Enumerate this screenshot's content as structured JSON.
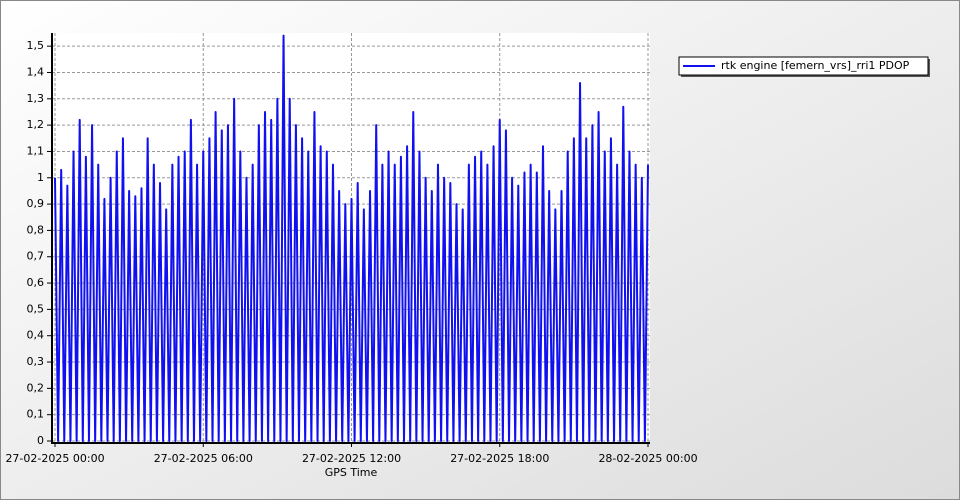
{
  "chart_data": {
    "type": "line",
    "x_label": "GPS Time",
    "x": [
      0,
      0.125,
      0.25,
      0.375,
      0.5,
      0.625,
      0.75,
      0.875,
      1,
      1.125,
      1.25,
      1.375,
      1.5,
      1.625,
      1.75,
      1.875,
      2,
      2.125,
      2.25,
      2.375,
      2.5,
      2.625,
      2.75,
      2.875,
      3,
      3.125,
      3.25,
      3.375,
      3.5,
      3.625,
      3.75,
      3.875,
      4,
      4.125,
      4.25,
      4.375,
      4.5,
      4.625,
      4.75,
      4.875,
      5,
      5.125,
      5.25,
      5.375,
      5.5,
      5.625,
      5.75,
      5.875,
      6,
      6.125,
      6.25,
      6.375,
      6.5,
      6.625,
      6.75,
      6.875,
      7,
      7.125,
      7.25,
      7.375,
      7.5,
      7.625,
      7.75,
      7.875,
      8,
      8.125,
      8.25,
      8.375,
      8.5,
      8.625,
      8.75,
      8.875,
      9,
      9.125,
      9.25,
      9.375,
      9.5,
      9.625,
      9.75,
      9.875,
      10,
      10.125,
      10.25,
      10.375,
      10.5,
      10.625,
      10.75,
      10.875,
      11,
      11.125,
      11.25,
      11.375,
      11.5,
      11.625,
      11.75,
      11.875,
      12,
      12.125,
      12.25,
      12.375,
      12.5,
      12.625,
      12.75,
      12.875,
      13,
      13.125,
      13.25,
      13.375,
      13.5,
      13.625,
      13.75,
      13.875,
      14,
      14.125,
      14.25,
      14.375,
      14.5,
      14.625,
      14.75,
      14.875,
      15,
      15.125,
      15.25,
      15.375,
      15.5,
      15.625,
      15.75,
      15.875,
      16,
      16.125,
      16.25,
      16.375,
      16.5,
      16.625,
      16.75,
      16.875,
      17,
      17.125,
      17.25,
      17.375,
      17.5,
      17.625,
      17.75,
      17.875,
      18,
      18.125,
      18.25,
      18.375,
      18.5,
      18.625,
      18.75,
      18.875,
      19,
      19.125,
      19.25,
      19.375,
      19.5,
      19.625,
      19.75,
      19.875,
      20,
      20.125,
      20.25,
      20.375,
      20.5,
      20.625,
      20.75,
      20.875,
      21,
      21.125,
      21.25,
      21.375,
      21.5,
      21.625,
      21.75,
      21.875,
      22,
      22.125,
      22.25,
      22.375,
      22.5,
      22.625,
      22.75,
      22.875,
      23,
      23.125,
      23.25,
      23.375,
      23.5,
      23.625,
      23.75,
      23.875,
      24
    ],
    "series": [
      {
        "name": "rtk engine [femern_vrs]_rri1 PDOP",
        "color": "#1010f0",
        "values": [
          1.0,
          0,
          1.03,
          0,
          0.97,
          0,
          1.1,
          0,
          1.22,
          0,
          1.08,
          0,
          1.2,
          0,
          1.05,
          0,
          0.92,
          0,
          1.0,
          0,
          1.1,
          0,
          1.15,
          0,
          0.95,
          0,
          0.93,
          0,
          0.96,
          0,
          1.15,
          0,
          1.05,
          0,
          0.98,
          0,
          0.88,
          0,
          1.05,
          0,
          1.08,
          0,
          1.1,
          0,
          1.22,
          0,
          1.05,
          0,
          1.1,
          0,
          1.15,
          0,
          1.25,
          0,
          1.18,
          0,
          1.2,
          0,
          1.3,
          0,
          1.1,
          0,
          1.0,
          0,
          1.05,
          0,
          1.2,
          0,
          1.25,
          0,
          1.22,
          0,
          1.3,
          0,
          1.54,
          0,
          1.3,
          0,
          1.2,
          0,
          1.15,
          0,
          1.1,
          0,
          1.25,
          0,
          1.12,
          0,
          1.1,
          0,
          1.05,
          0,
          0.95,
          0,
          0.9,
          0,
          0.92,
          0,
          0.98,
          0,
          0.88,
          0,
          0.95,
          0,
          1.2,
          0,
          1.05,
          0,
          1.1,
          0,
          1.05,
          0,
          1.08,
          0,
          1.12,
          0,
          1.25,
          0,
          1.1,
          0,
          1.0,
          0,
          0.95,
          0,
          1.05,
          0,
          1.0,
          0,
          0.98,
          0,
          0.9,
          0,
          0.88,
          0,
          1.05,
          0,
          1.08,
          0,
          1.1,
          0,
          1.05,
          0,
          1.12,
          0,
          1.22,
          0,
          1.18,
          0,
          1.0,
          0,
          0.97,
          0,
          1.02,
          0,
          1.05,
          0,
          1.02,
          0,
          1.12,
          0,
          0.95,
          0,
          0.88,
          0,
          0.95,
          0,
          1.1,
          0,
          1.15,
          0,
          1.36,
          0,
          1.15,
          0,
          1.2,
          0,
          1.25,
          0,
          1.1,
          0,
          1.15,
          0,
          1.05,
          0,
          1.27,
          0,
          1.1,
          0,
          1.05,
          0,
          1.0,
          0,
          1.05
        ]
      }
    ],
    "xlim": [
      0,
      24
    ],
    "xticks": [
      {
        "value": 0,
        "label": "27-02-2025 00:00"
      },
      {
        "value": 6,
        "label": "27-02-2025 06:00"
      },
      {
        "value": 12,
        "label": "27-02-2025 12:00"
      },
      {
        "value": 18,
        "label": "27-02-2025 18:00"
      },
      {
        "value": 24,
        "label": "28-02-2025 00:00"
      }
    ],
    "ylim": [
      0,
      1.55
    ],
    "yticks": [
      0,
      {
        "value": 0.1,
        "label": "0,1"
      },
      {
        "value": 0.2,
        "label": "0,2"
      },
      {
        "value": 0.3,
        "label": "0,3"
      },
      {
        "value": 0.4,
        "label": "0,4"
      },
      {
        "value": 0.5,
        "label": "0,5"
      },
      {
        "value": 0.6,
        "label": "0,6"
      },
      {
        "value": 0.7,
        "label": "0,7"
      },
      {
        "value": 0.8,
        "label": "0,8"
      },
      {
        "value": 0.9,
        "label": "0,9"
      },
      1,
      {
        "value": 1.1,
        "label": "1,1"
      },
      {
        "value": 1.2,
        "label": "1,2"
      },
      {
        "value": 1.3,
        "label": "1,3"
      },
      {
        "value": 1.4,
        "label": "1,4"
      },
      {
        "value": 1.5,
        "label": "1,5"
      }
    ],
    "grid": true,
    "legend": "right"
  }
}
